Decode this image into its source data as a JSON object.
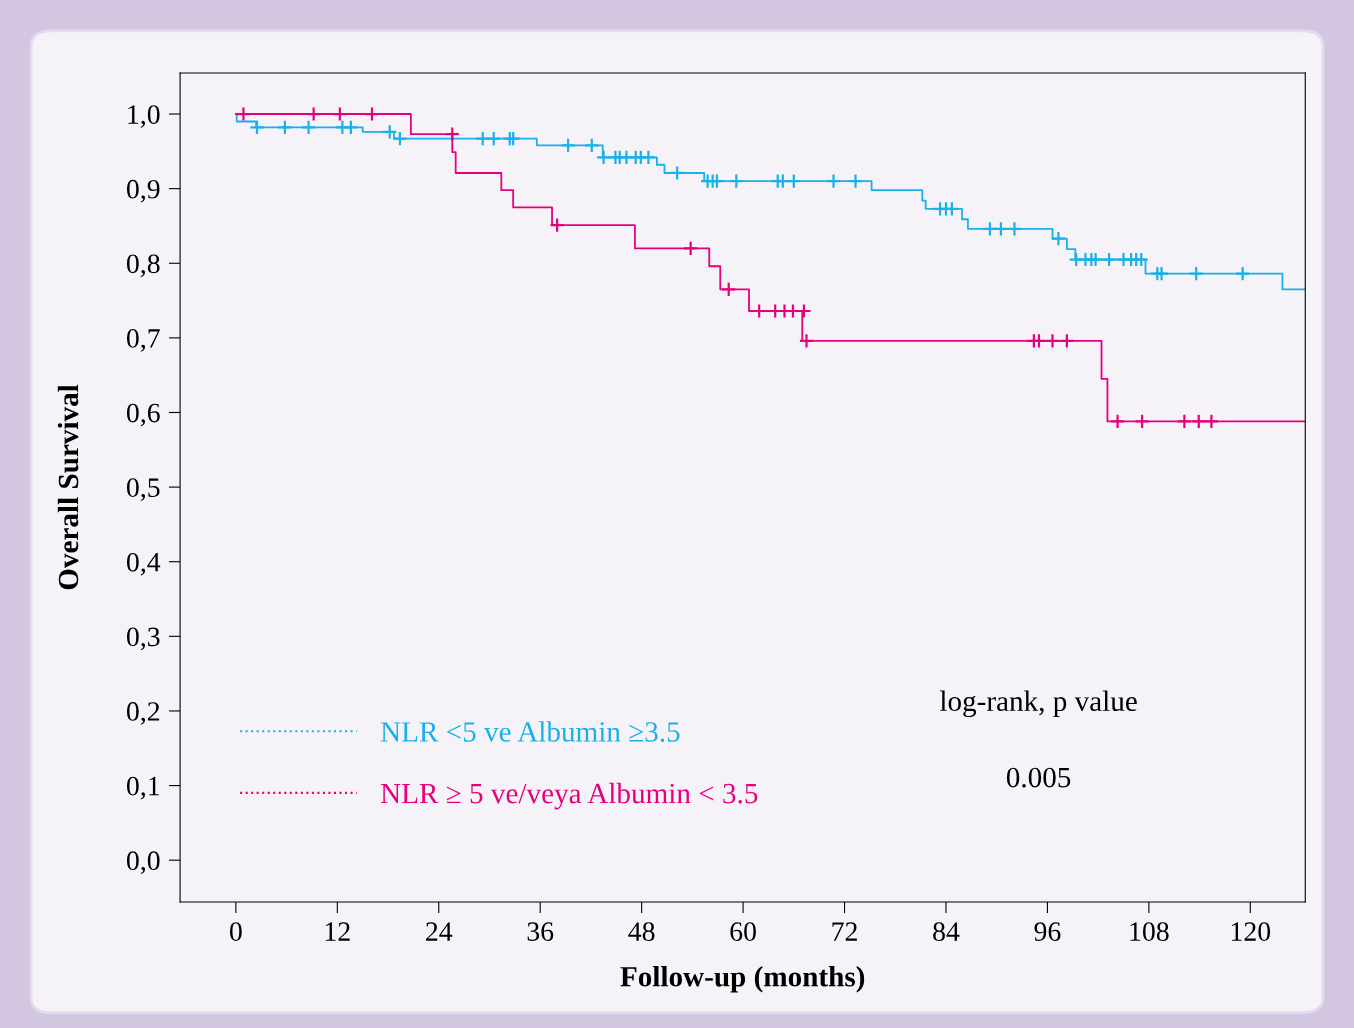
{
  "chart_data": {
    "type": "step",
    "xlabel": "Follow-up (months)",
    "ylabel": "Overall Survival",
    "xlim": [
      -6.6,
      126.5
    ],
    "ylim": [
      -0.056,
      1.055
    ],
    "xticks": [
      0,
      12,
      24,
      36,
      48,
      60,
      72,
      84,
      96,
      108,
      120
    ],
    "yticks": [
      {
        "value": 0.0,
        "label": "0,0"
      },
      {
        "value": 0.1,
        "label": "0,1"
      },
      {
        "value": 0.2,
        "label": "0,2"
      },
      {
        "value": 0.3,
        "label": "0,3"
      },
      {
        "value": 0.4,
        "label": "0,4"
      },
      {
        "value": 0.5,
        "label": "0,5"
      },
      {
        "value": 0.6,
        "label": "0,6"
      },
      {
        "value": 0.7,
        "label": "0,7"
      },
      {
        "value": 0.8,
        "label": "0,8"
      },
      {
        "value": 0.9,
        "label": "0,9"
      },
      {
        "value": 1.0,
        "label": "1,0"
      }
    ],
    "grid": false,
    "legend": "bottom left",
    "annotations": [
      "log-rank, p value",
      "0.005"
    ],
    "series": [
      {
        "name": "NLR <5 ve Albumin ≥3.5",
        "color": "#1ab0e8",
        "x": [
          0,
          0.1,
          2.4,
          15.0,
          18.7,
          35.6,
          43.4,
          49.8,
          50.7,
          55.4,
          75.2,
          81.2,
          81.6,
          85.9,
          86.6,
          96.6,
          98.3,
          99.3,
          107.6,
          123.8,
          126.5
        ],
        "values": [
          1.0,
          0.99,
          0.982,
          0.976,
          0.967,
          0.958,
          0.942,
          0.932,
          0.921,
          0.91,
          0.898,
          0.884,
          0.873,
          0.859,
          0.846,
          0.833,
          0.819,
          0.805,
          0.786,
          0.765,
          0.765
        ]
      },
      {
        "name": "NLR ≥ 5 ve/veya Albumin < 3.5",
        "color": "#e6007e",
        "x": [
          0,
          20.7,
          25.6,
          26.0,
          31.4,
          32.8,
          37.4,
          47.2,
          56.0,
          57.3,
          60.7,
          67.0,
          102.4,
          103.1,
          126.5
        ],
        "values": [
          1.0,
          0.973,
          0.949,
          0.921,
          0.898,
          0.875,
          0.851,
          0.82,
          0.796,
          0.765,
          0.736,
          0.696,
          0.645,
          0.588,
          0.588
        ]
      },
      {
        "color": "#1ab0e8",
        "type": "scatter",
        "marker": "cross",
        "x": [
          2.5,
          5.8,
          8.6,
          12.6,
          13.6,
          18.2,
          19.4,
          29.2,
          30.5,
          32.4,
          32.8,
          39.3,
          42.1,
          43.5,
          44.9,
          45.4,
          46.2,
          47.3,
          47.9,
          48.8,
          52.2,
          55.8,
          56.4,
          56.9,
          59.2,
          64.1,
          64.7,
          66.0,
          70.7,
          73.3,
          83.3,
          84.0,
          84.7,
          89.2,
          90.5,
          92.1,
          97.3,
          99.4,
          100.5,
          101.2,
          101.7,
          103.3,
          105.0,
          105.9,
          106.5,
          107.1,
          109.0,
          109.5,
          113.6,
          119.1
        ],
        "values": [
          0.982,
          0.982,
          0.982,
          0.982,
          0.982,
          0.976,
          0.967,
          0.967,
          0.967,
          0.967,
          0.967,
          0.958,
          0.958,
          0.942,
          0.942,
          0.942,
          0.942,
          0.942,
          0.942,
          0.942,
          0.921,
          0.91,
          0.91,
          0.91,
          0.91,
          0.91,
          0.91,
          0.91,
          0.91,
          0.91,
          0.873,
          0.873,
          0.873,
          0.846,
          0.846,
          0.846,
          0.833,
          0.805,
          0.805,
          0.805,
          0.805,
          0.805,
          0.805,
          0.805,
          0.805,
          0.805,
          0.786,
          0.786,
          0.786,
          0.786
        ]
      },
      {
        "color": "#e6007e",
        "type": "scatter",
        "marker": "cross",
        "x": [
          0.9,
          9.2,
          12.3,
          16.1,
          25.6,
          38.0,
          53.8,
          58.3,
          61.9,
          63.8,
          64.9,
          65.9,
          67.2,
          67.5,
          94.4,
          95.0,
          96.6,
          98.3,
          104.3,
          107.2,
          112.2,
          113.9,
          115.4
        ],
        "values": [
          1.0,
          1.0,
          1.0,
          1.0,
          0.973,
          0.851,
          0.82,
          0.765,
          0.736,
          0.736,
          0.736,
          0.736,
          0.736,
          0.696,
          0.696,
          0.696,
          0.696,
          0.696,
          0.588,
          0.588,
          0.588,
          0.588,
          0.588
        ]
      }
    ]
  }
}
